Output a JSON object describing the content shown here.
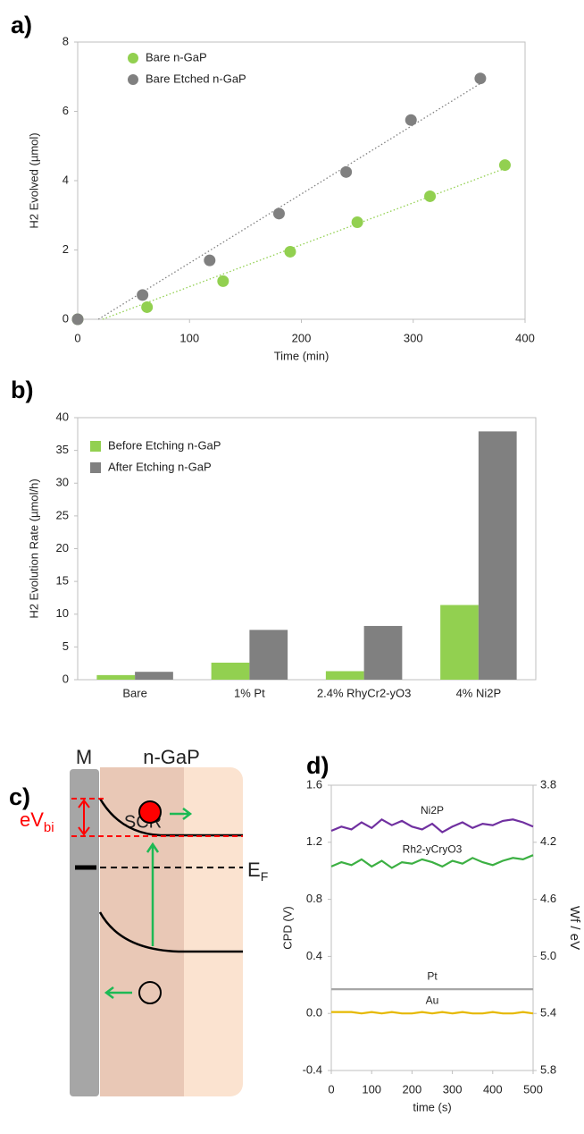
{
  "chart_data": [
    {
      "type": "scatter",
      "panel_label": "a)",
      "x_label": "Time (min)",
      "y_label": "H2 Evolved (µmol)",
      "xlim": [
        0,
        400
      ],
      "xticks": [
        0,
        100,
        200,
        300,
        400
      ],
      "ylim": [
        0,
        8
      ],
      "yticks": [
        0,
        2,
        4,
        6,
        8
      ],
      "legend": "upper left",
      "trendline": true,
      "series": [
        {
          "name": "Bare n-GaP",
          "color": "#92d050",
          "x": [
            0,
            62,
            130,
            190,
            250,
            315,
            382
          ],
          "values": [
            0,
            0.35,
            1.1,
            1.95,
            2.8,
            3.55,
            4.45
          ]
        },
        {
          "name": "Bare Etched n-GaP",
          "color": "#808080",
          "x": [
            0,
            58,
            118,
            180,
            240,
            298,
            360
          ],
          "values": [
            0,
            0.7,
            1.7,
            3.05,
            4.25,
            5.75,
            6.95
          ]
        }
      ]
    },
    {
      "type": "bar",
      "panel_label": "b)",
      "y_label": "H2 Evolution Rate (µmol/h)",
      "categories": [
        "Bare",
        "1% Pt",
        "2.4% RhyCr2-yO3",
        "4% Ni2P"
      ],
      "ylim": [
        0,
        40
      ],
      "yticks": [
        0,
        5,
        10,
        15,
        20,
        25,
        30,
        35,
        40
      ],
      "legend": "upper left",
      "series": [
        {
          "name": "Before Etching n-GaP",
          "color": "#92d050",
          "values": [
            0.7,
            2.6,
            1.3,
            11.4
          ]
        },
        {
          "name": "After Etching n-GaP",
          "color": "#808080",
          "values": [
            1.2,
            7.6,
            8.2,
            37.9
          ]
        }
      ]
    },
    {
      "type": "line",
      "panel_label": "d)",
      "x_label": "time (s)",
      "y_label": "CPD (V)",
      "y2_label": "Wf / eV",
      "x": [
        0,
        25,
        50,
        75,
        100,
        125,
        150,
        175,
        200,
        225,
        250,
        275,
        300,
        325,
        350,
        375,
        400,
        425,
        450,
        475,
        500
      ],
      "xlim": [
        0,
        500
      ],
      "xticks": [
        0,
        100,
        200,
        300,
        400,
        500
      ],
      "ylim": [
        -0.4,
        1.6
      ],
      "yticks": [
        -0.4,
        {
          "value": 0,
          "label": "0.0"
        },
        0.4,
        0.8,
        1.2,
        1.6
      ],
      "y2lim": [
        5.8,
        3.8
      ],
      "y2ticks": [
        5.8,
        5.4,
        {
          "value": 5,
          "label": "5.0"
        },
        4.6,
        4.2,
        3.8
      ],
      "series": [
        {
          "name": "Ni2P",
          "color": "#7030a0",
          "values": [
            1.28,
            1.31,
            1.29,
            1.34,
            1.3,
            1.36,
            1.32,
            1.35,
            1.31,
            1.29,
            1.33,
            1.27,
            1.31,
            1.34,
            1.3,
            1.33,
            1.32,
            1.35,
            1.36,
            1.34,
            1.31
          ]
        },
        {
          "name": "Rh2-yCryO3",
          "color": "#3cb043",
          "values": [
            1.03,
            1.06,
            1.04,
            1.08,
            1.03,
            1.07,
            1.02,
            1.06,
            1.05,
            1.08,
            1.06,
            1.03,
            1.07,
            1.05,
            1.09,
            1.06,
            1.04,
            1.07,
            1.09,
            1.08,
            1.11
          ]
        },
        {
          "name": "Pt",
          "color": "#a6a6a6",
          "values": [
            0.17,
            0.17,
            0.17,
            0.17,
            0.17,
            0.17,
            0.17,
            0.17,
            0.17,
            0.17,
            0.17,
            0.17,
            0.17,
            0.17,
            0.17,
            0.17,
            0.17,
            0.17,
            0.17,
            0.17,
            0.17
          ]
        },
        {
          "name": "Au",
          "color": "#e6b800",
          "values": [
            0.01,
            0.01,
            0.01,
            0.0,
            0.01,
            0.0,
            0.01,
            0.0,
            0.0,
            0.01,
            0.0,
            0.01,
            0.0,
            0.01,
            0.0,
            0.0,
            0.01,
            0.0,
            0.0,
            0.01,
            0.0
          ]
        }
      ]
    }
  ],
  "diagram": {
    "panel_label": "c)",
    "metal": "M",
    "semiconductor": "n-GaP",
    "region": "SCR",
    "built_in": {
      "main": "eV",
      "sub": "bi"
    },
    "fermi": {
      "main": "E",
      "sub": "F"
    }
  }
}
